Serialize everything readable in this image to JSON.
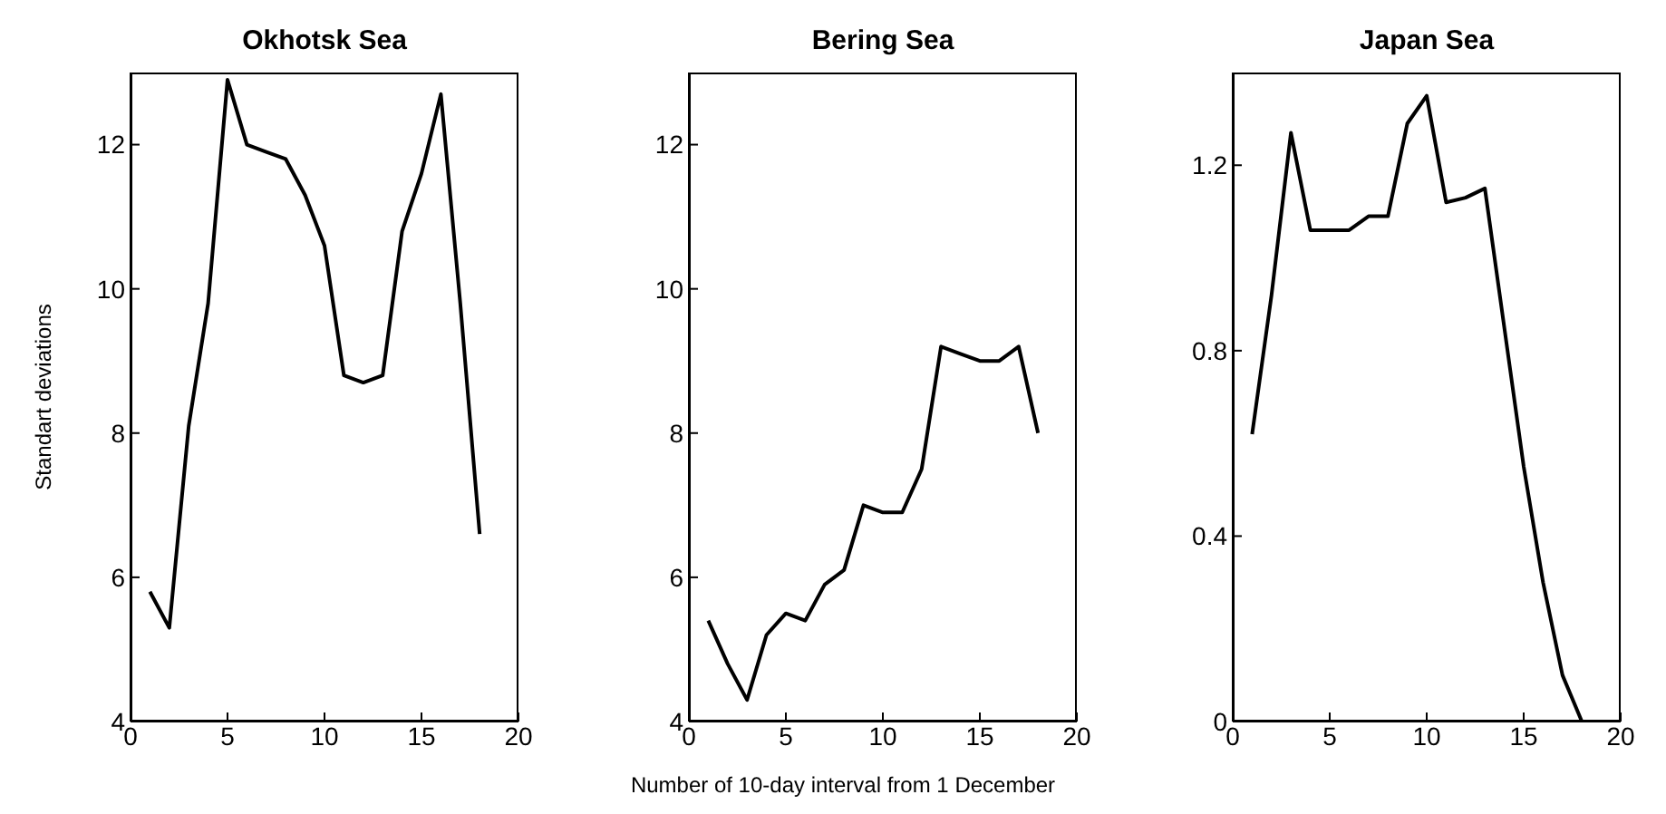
{
  "chart_data": [
    {
      "type": "line",
      "title": "Okhotsk Sea",
      "ylabel": "Standart deviations",
      "x": [
        1,
        2,
        3,
        4,
        5,
        6,
        7,
        8,
        9,
        10,
        11,
        12,
        13,
        14,
        15,
        16,
        17,
        18
      ],
      "series": [
        {
          "color": "#000000",
          "values": [
            5.8,
            5.3,
            8.1,
            9.8,
            12.9,
            12.0,
            11.9,
            11.8,
            11.3,
            10.6,
            8.8,
            8.7,
            8.8,
            10.8,
            11.6,
            12.7,
            9.8,
            6.6
          ]
        }
      ],
      "xlim": [
        0,
        20
      ],
      "xticks": [
        0,
        5,
        10,
        15,
        20
      ],
      "ylim": [
        4,
        13
      ],
      "yticks": [
        4,
        6,
        8,
        10,
        12
      ],
      "grid": false,
      "legend": false,
      "marker": "none"
    },
    {
      "type": "line",
      "title": "Bering Sea",
      "xlabel": "Number of 10-day interval from  1 December",
      "x": [
        1,
        2,
        3,
        4,
        5,
        6,
        7,
        8,
        9,
        10,
        11,
        12,
        13,
        14,
        15,
        16,
        17,
        18
      ],
      "series": [
        {
          "color": "#000000",
          "values": [
            5.4,
            4.8,
            4.3,
            5.2,
            5.5,
            5.4,
            5.9,
            6.1,
            7.0,
            6.9,
            6.9,
            7.5,
            9.2,
            9.1,
            9.0,
            9.0,
            9.2,
            8.0
          ]
        }
      ],
      "xlim": [
        0,
        20
      ],
      "xticks": [
        0,
        5,
        10,
        15,
        20
      ],
      "ylim": [
        4,
        13
      ],
      "yticks": [
        4,
        6,
        8,
        10,
        12
      ],
      "grid": false,
      "legend": false,
      "marker": "none"
    },
    {
      "type": "line",
      "title": "Japan Sea",
      "x": [
        1,
        2,
        3,
        4,
        5,
        6,
        7,
        8,
        9,
        10,
        11,
        12,
        13,
        14,
        15,
        16,
        17,
        18
      ],
      "series": [
        {
          "color": "#000000",
          "values": [
            0.62,
            0.92,
            1.27,
            1.06,
            1.06,
            1.06,
            1.09,
            1.09,
            1.29,
            1.35,
            1.12,
            1.13,
            1.15,
            0.85,
            0.55,
            0.3,
            0.1,
            0
          ]
        }
      ],
      "xlim": [
        0,
        20
      ],
      "xticks": [
        0,
        5,
        10,
        15,
        20
      ],
      "ylim": [
        0,
        1.4
      ],
      "yticks": [
        0,
        0.4,
        0.8,
        1.2
      ],
      "grid": false,
      "legend": false,
      "marker": "none"
    }
  ]
}
